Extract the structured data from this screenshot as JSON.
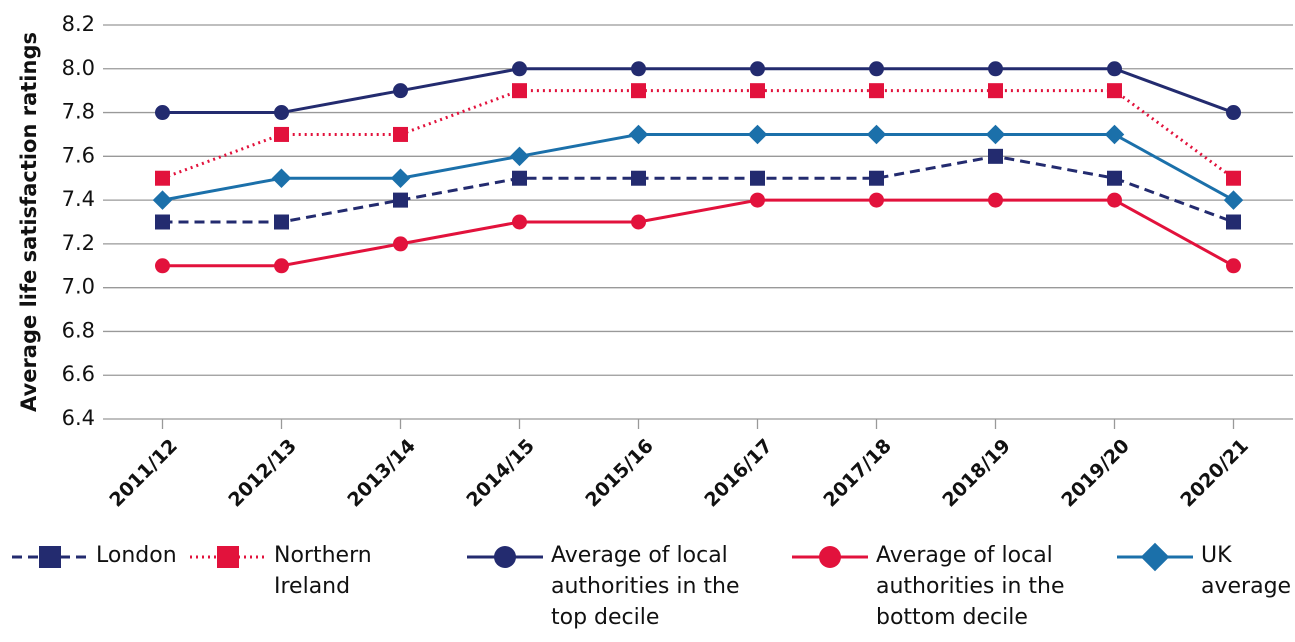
{
  "chart_data": {
    "type": "line",
    "y_label": "Average life satisfaction ratings",
    "categories": [
      "2011/12",
      "2012/13",
      "2013/14",
      "2014/15",
      "2015/16",
      "2016/17",
      "2017/18",
      "2018/19",
      "2019/20",
      "2020/21"
    ],
    "series": [
      {
        "name": "London",
        "color": "#232b6f",
        "dash": "dashed",
        "marker": "square",
        "values": [
          7.3,
          7.3,
          7.4,
          7.5,
          7.5,
          7.5,
          7.5,
          7.6,
          7.5,
          7.3
        ]
      },
      {
        "name": "Northern Ireland",
        "color": "#e2123c",
        "dash": "dotted",
        "marker": "square",
        "values": [
          7.5,
          7.7,
          7.7,
          7.9,
          7.9,
          7.9,
          7.9,
          7.9,
          7.9,
          7.5
        ]
      },
      {
        "name": "Average of local authorities in the top decile",
        "color": "#232b6f",
        "dash": "solid",
        "marker": "circle",
        "values": [
          7.8,
          7.8,
          7.9,
          8.0,
          8.0,
          8.0,
          8.0,
          8.0,
          8.0,
          7.8
        ]
      },
      {
        "name": "Average of local authorities in the bottom decile",
        "color": "#e2123c",
        "dash": "solid",
        "marker": "circle",
        "values": [
          7.1,
          7.1,
          7.2,
          7.3,
          7.3,
          7.4,
          7.4,
          7.4,
          7.4,
          7.1
        ]
      },
      {
        "name": "UK average",
        "color": "#1b70aa",
        "dash": "solid",
        "marker": "diamond",
        "values": [
          7.4,
          7.5,
          7.5,
          7.6,
          7.7,
          7.7,
          7.7,
          7.7,
          7.7,
          7.4
        ]
      }
    ],
    "ylim": [
      6.4,
      8.2
    ],
    "yticks": [
      6.4,
      6.6,
      6.8,
      {
        "value": 7.0,
        "label": "7.0"
      },
      7.2,
      7.4,
      7.6,
      7.8,
      {
        "value": 8.0,
        "label": "8.0"
      },
      8.2
    ],
    "grid": true,
    "legend": "bottom"
  }
}
